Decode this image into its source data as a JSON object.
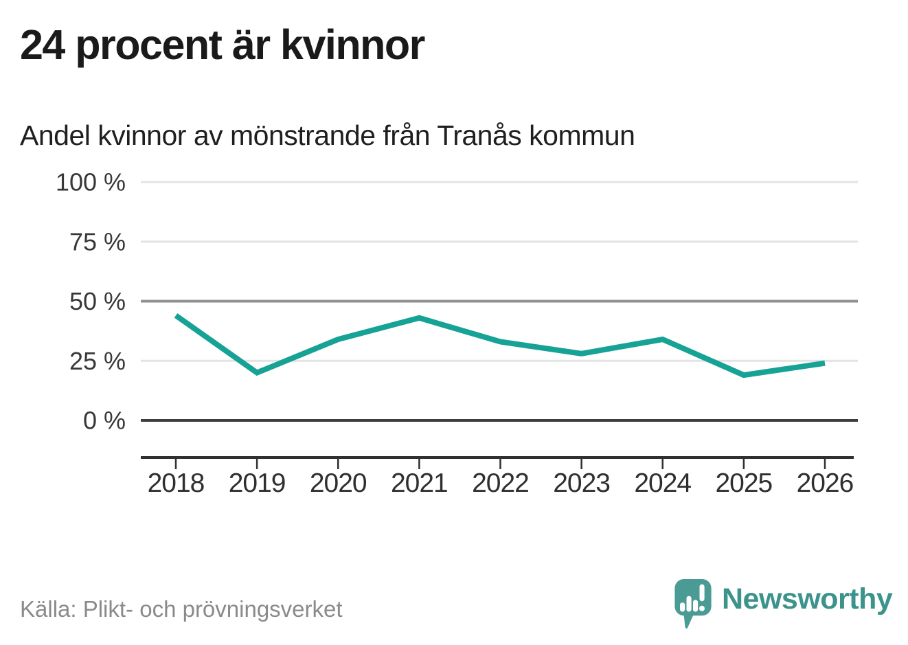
{
  "title": "24 procent är kvinnor",
  "subtitle": "Andel kvinnor av mönstrande från Tranås kommun",
  "source": "Källa: Plikt- och prövningsverket",
  "brand": {
    "name": "Newsworthy",
    "logo_icon": "speech-bubble-bar-chart-icon"
  },
  "colors": {
    "line": "#17a296",
    "grid_light": "#e3e3e3",
    "grid_mid": "#919191",
    "grid_zero": "#3d3d3d",
    "axis": "#303030",
    "axis_text": "#383838",
    "title_text": "#1a1a1a",
    "source_text": "#8a8a8a",
    "brand_teal": "#3c938b",
    "logo_fill": "#4a9b94"
  },
  "chart_data": {
    "type": "line",
    "title": "24 procent är kvinnor",
    "subtitle": "Andel kvinnor av mönstrande från Tranås kommun",
    "categories": [
      "2018",
      "2019",
      "2020",
      "2021",
      "2022",
      "2023",
      "2024",
      "2025",
      "2026"
    ],
    "series": [
      {
        "name": "Andel kvinnor av mönstrande",
        "values": [
          44,
          20,
          34,
          43,
          33,
          28,
          34,
          19,
          24
        ]
      }
    ],
    "unit": "%",
    "ylim": [
      0,
      100
    ],
    "yticks": [
      0,
      25,
      50,
      75,
      100
    ],
    "ytick_labels": [
      "0 %",
      "25 %",
      "50 %",
      "75 %",
      "100 %"
    ],
    "grid": "horizontal",
    "emphasized_gridline": 50,
    "legend": "none",
    "xlabel": "",
    "ylabel": ""
  }
}
